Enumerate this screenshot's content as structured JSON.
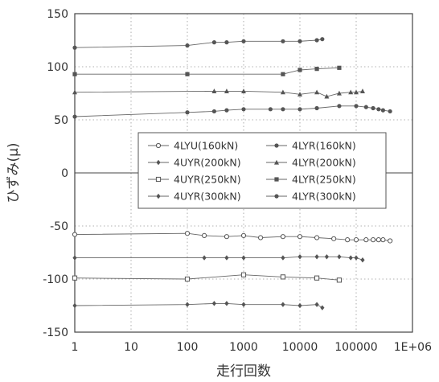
{
  "chart_data": {
    "type": "line",
    "title": "",
    "xlabel": "走行回数",
    "ylabel": "ひずみ(μ)",
    "x_scale": "log",
    "xlim": [
      1,
      1000000
    ],
    "ylim": [
      -150,
      150
    ],
    "x_tick_labels": [
      "1",
      "10",
      "100",
      "1000",
      "10000",
      "100000",
      "1E+06"
    ],
    "y_ticks": [
      150,
      100,
      50,
      0,
      -50,
      -100,
      -150
    ],
    "grid": "dotted",
    "legend_position": "center",
    "legend": [
      {
        "label": "4LYU(160kN)",
        "marker": "circle-open"
      },
      {
        "label": "4LYR(160kN)",
        "marker": "circle-filled"
      },
      {
        "label": "4UYR(200kN)",
        "marker": "diamond"
      },
      {
        "label": "4LYR(200kN)",
        "marker": "triangle"
      },
      {
        "label": "4UYR(250kN)",
        "marker": "square-open"
      },
      {
        "label": "4LYR(250kN)",
        "marker": "square-filled"
      },
      {
        "label": "4UYR(300kN)",
        "marker": "diamond"
      },
      {
        "label": "4LYR(300kN)",
        "marker": "circle-filled"
      }
    ],
    "series": [
      {
        "marker": "circle-filled",
        "points": [
          [
            1,
            118
          ],
          [
            100,
            120
          ],
          [
            300,
            123
          ],
          [
            500,
            123
          ],
          [
            1000,
            124
          ],
          [
            5000,
            124
          ],
          [
            10000,
            124
          ],
          [
            20000,
            125
          ],
          [
            25000,
            126
          ]
        ]
      },
      {
        "marker": "square-filled",
        "points": [
          [
            1,
            93
          ],
          [
            100,
            93
          ],
          [
            5000,
            93
          ],
          [
            10000,
            97
          ],
          [
            20000,
            98
          ],
          [
            50000,
            99
          ]
        ]
      },
      {
        "marker": "triangle",
        "points": [
          [
            1,
            76
          ],
          [
            300,
            77
          ],
          [
            500,
            77
          ],
          [
            1000,
            77
          ],
          [
            5000,
            76
          ],
          [
            10000,
            74
          ],
          [
            20000,
            76
          ],
          [
            30000,
            72
          ],
          [
            50000,
            75
          ],
          [
            80000,
            76
          ],
          [
            100000,
            76
          ],
          [
            130000,
            77
          ]
        ]
      },
      {
        "marker": "circle-filled",
        "points": [
          [
            1,
            53
          ],
          [
            100,
            57
          ],
          [
            300,
            58
          ],
          [
            500,
            59
          ],
          [
            1000,
            60
          ],
          [
            3000,
            60
          ],
          [
            5000,
            60
          ],
          [
            10000,
            60
          ],
          [
            20000,
            61
          ],
          [
            50000,
            63
          ],
          [
            100000,
            63
          ],
          [
            150000,
            62
          ],
          [
            200000,
            61
          ],
          [
            250000,
            60
          ],
          [
            300000,
            59
          ],
          [
            400000,
            58
          ]
        ]
      },
      {
        "marker": "circle-open",
        "points": [
          [
            1,
            -58
          ],
          [
            100,
            -57
          ],
          [
            200,
            -59
          ],
          [
            500,
            -60
          ],
          [
            1000,
            -59
          ],
          [
            2000,
            -61
          ],
          [
            5000,
            -60
          ],
          [
            10000,
            -60
          ],
          [
            20000,
            -61
          ],
          [
            40000,
            -62
          ],
          [
            70000,
            -63
          ],
          [
            100000,
            -63
          ],
          [
            150000,
            -63
          ],
          [
            200000,
            -63
          ],
          [
            250000,
            -63
          ],
          [
            300000,
            -63
          ],
          [
            400000,
            -64
          ]
        ]
      },
      {
        "marker": "diamond",
        "points": [
          [
            1,
            -80
          ],
          [
            200,
            -80
          ],
          [
            500,
            -80
          ],
          [
            1000,
            -80
          ],
          [
            5000,
            -80
          ],
          [
            10000,
            -79
          ],
          [
            20000,
            -79
          ],
          [
            30000,
            -79
          ],
          [
            50000,
            -79
          ],
          [
            80000,
            -80
          ],
          [
            100000,
            -80
          ],
          [
            130000,
            -82
          ]
        ]
      },
      {
        "marker": "square-open",
        "points": [
          [
            1,
            -99
          ],
          [
            100,
            -100
          ],
          [
            1000,
            -96
          ],
          [
            5000,
            -98
          ],
          [
            20000,
            -99
          ],
          [
            50000,
            -101
          ]
        ]
      },
      {
        "marker": "diamond",
        "points": [
          [
            1,
            -125
          ],
          [
            100,
            -124
          ],
          [
            300,
            -123
          ],
          [
            500,
            -123
          ],
          [
            1000,
            -124
          ],
          [
            5000,
            -124
          ],
          [
            10000,
            -125
          ],
          [
            20000,
            -124
          ],
          [
            25000,
            -127
          ]
        ]
      }
    ]
  }
}
